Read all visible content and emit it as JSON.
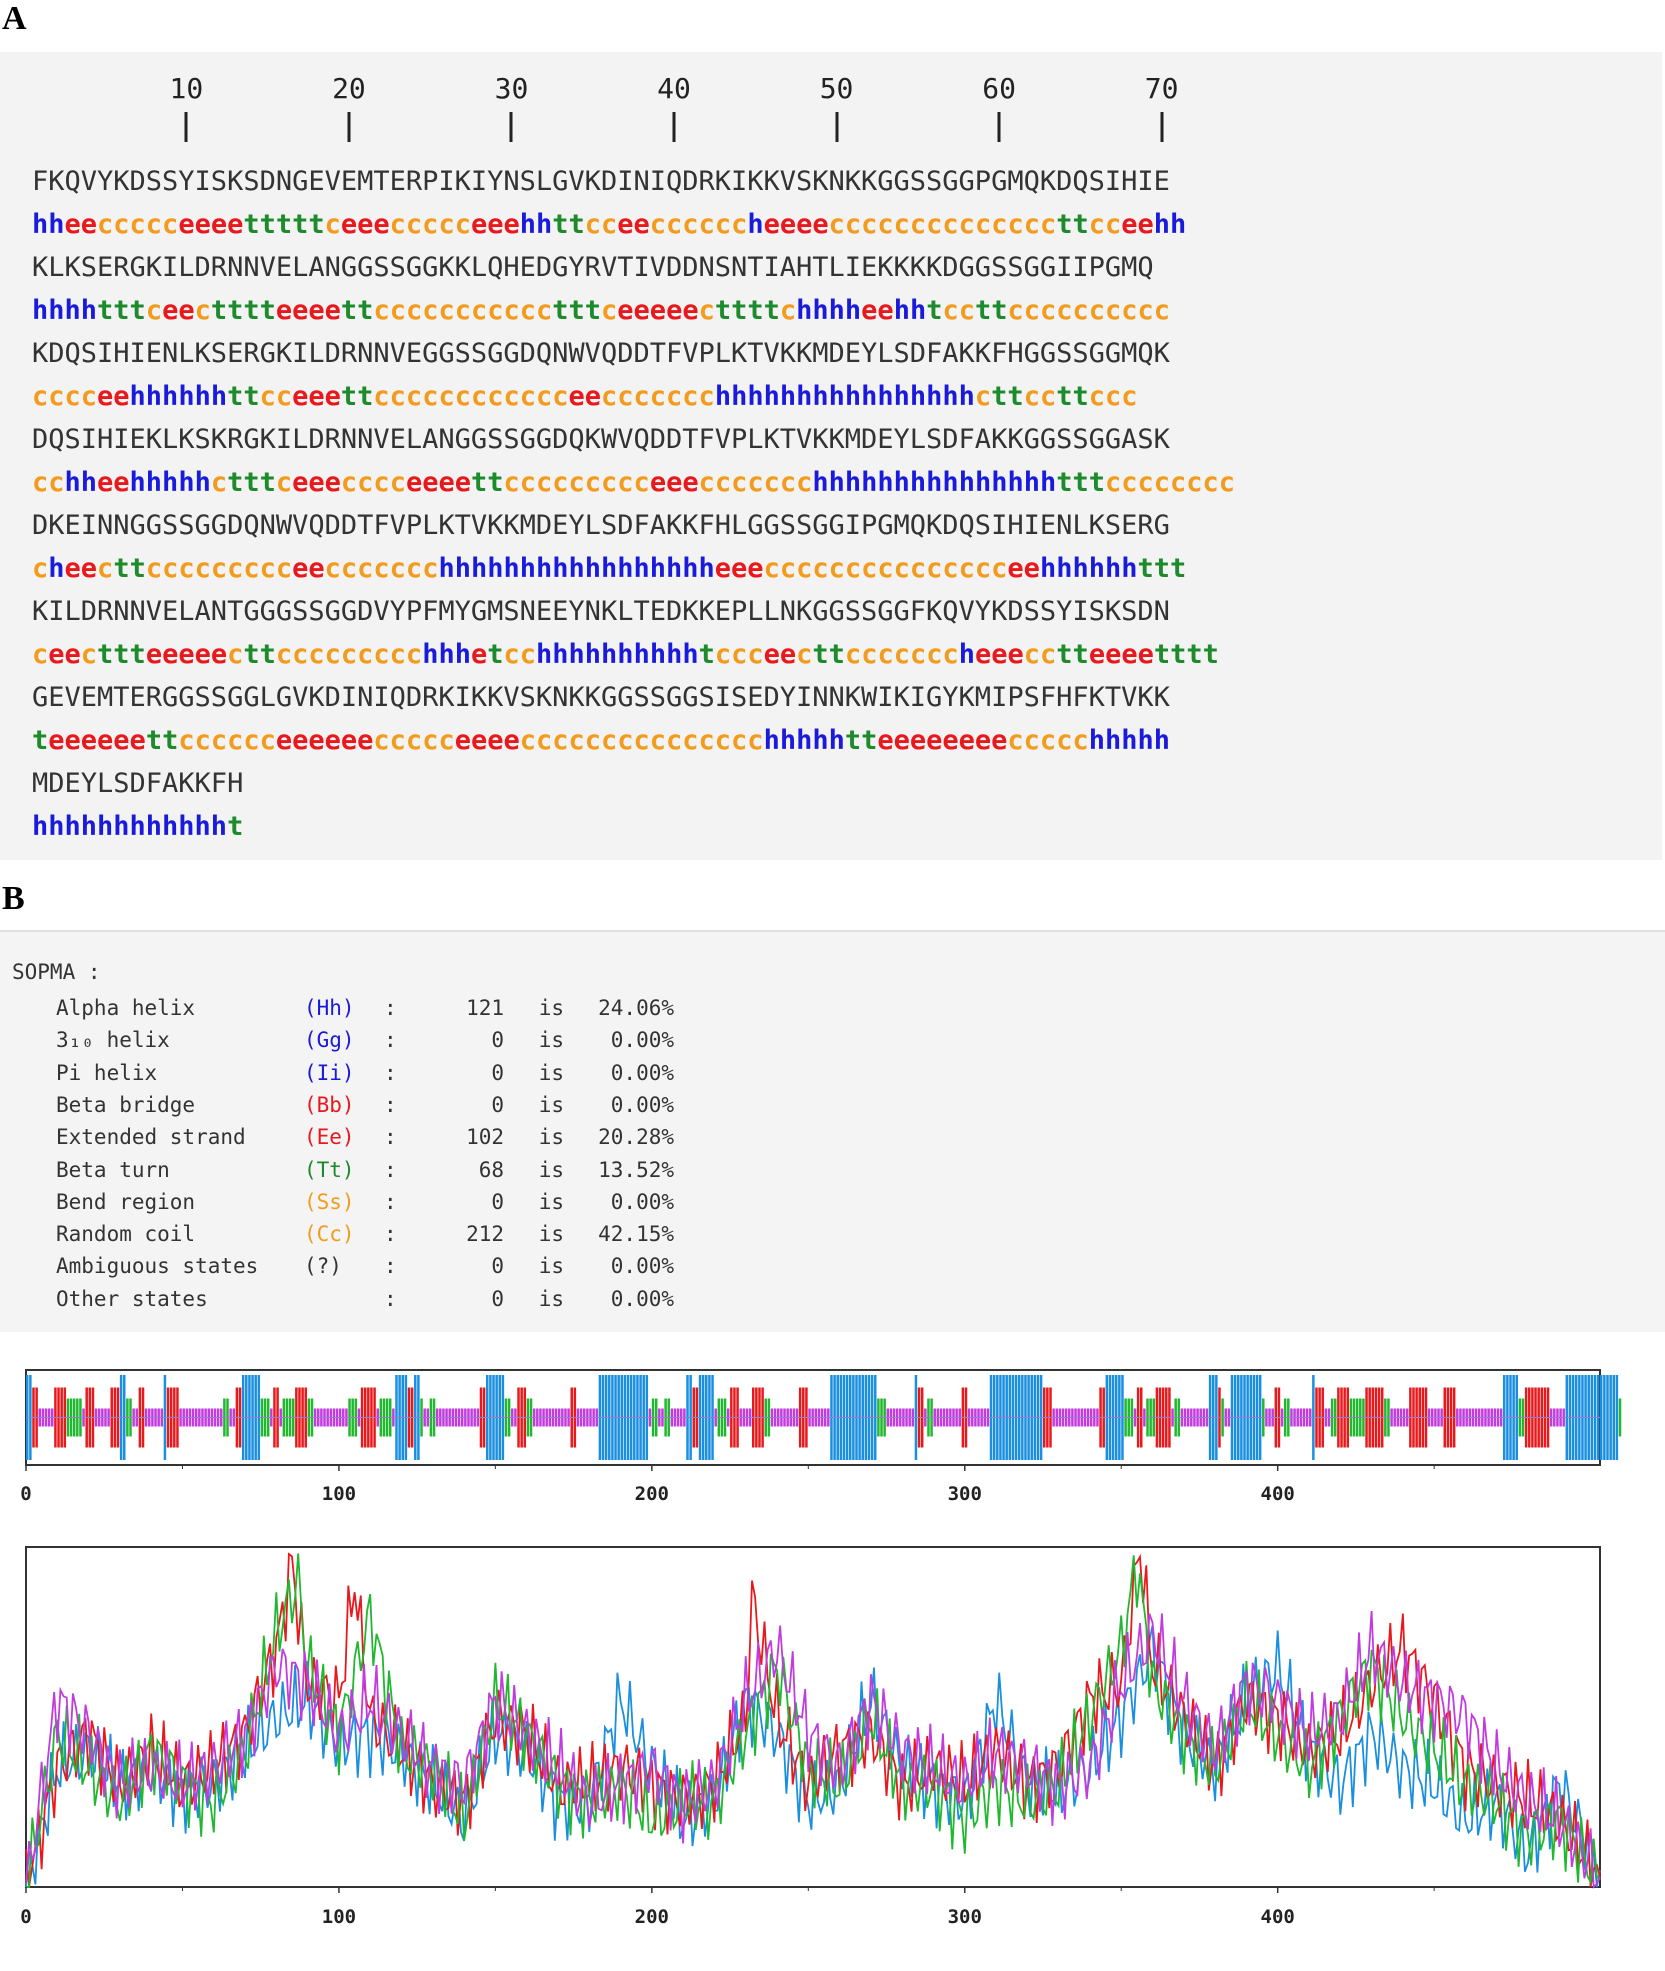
{
  "panel_a": {
    "label": "A",
    "ruler": [
      "10",
      "20",
      "30",
      "40",
      "50",
      "60",
      "70"
    ],
    "rows": [
      {
        "seq": "FKQVYKDSSYISKSDNGEVEMTERPIKIYNSLGVKDINIQDRKIKKVSKNKKGGSSGGPGMQKDQSIHIE",
        "ss": "hheeccccceeeetttttceeeccccceeehhttcceeccccccheeeeccccccccccccccttcceehh"
      },
      {
        "seq": "KLKSERGKILDRNNVELANGGSSGGKKLQHEDGYRVTIVDDNSNTIAHTLIEKKKKDGGSSGGIIPGMQ",
        "ss": "hhhhtttceectttteeeettccccccccccctttceeeeecttttchhhheehhtccttcccccccccc"
      },
      {
        "seq": "KDQSIHIENLKSERGKILDRNNVEGGSSGGDQNWVQDDTFVPLKTVKKMDEYLSDFAKKFHGGSSGGMQK",
        "ss": "cccceehhhhhhttcceeettcccccccccccceeccccccchhhhhhhhhhhhhhhhcttccttccc"
      },
      {
        "seq": "DQSIHIEKLKSKRGKILDRNNVELANGGSSGGDQKWVQDDTFVPLKTVKKMDEYLSDFAKKGGSSGGASK",
        "ss": "cchheehhhhhctttceeecccceeeettccccccccceeeccccccchhhhhhhhhhhhhhhtttcccccccc"
      },
      {
        "seq": "DKEINNGGSSGGDQNWVQDDTFVPLKTVKKMDEYLSDFAKKFHLGGSSGGIPGMQKDQSIHIENLKSERG",
        "ss": "cheecttccccccccceeccccccchhhhhhhhhhhhhhhhheeeccccccccccccccceehhhhhhttt"
      },
      {
        "seq": "KILDRNNVELANTGGGSSGGDVYPFMYGMSNEEYNKLTEDKKEPLLNKGGSSGGFKQVYKDSSYISKSDN",
        "ss": "ceecttteeeeecttccccccccchhhetcchhhhhhhhhhtccceecttcccccccheeecctteeeetttt"
      },
      {
        "seq": "GEVEMTERGGSSGGLGVKDINIQDRKIKKVSKNKKGGSSGGSISEDYINNKWIKIGYKMIPSFHFKTVKK",
        "ss": "teeeeeettcccccceeeeeeccccceeeeccccccccccccccchhhhhtteeeeeeeeccccchhhhh"
      },
      {
        "seq": "MDEYLSDFAKKFH",
        "ss": "hhhhhhhhhhhht"
      }
    ]
  },
  "panel_b": {
    "label": "B",
    "title": "SOPMA :",
    "stats": [
      {
        "name": "Alpha helix",
        "code": "(Hh)",
        "count": "121",
        "is": "is",
        "pct": "24.06%"
      },
      {
        "name": "3₁₀ helix",
        "code": "(Gg)",
        "count": "0",
        "is": "is",
        "pct": "0.00%"
      },
      {
        "name": "Pi helix",
        "code": "(Ii)",
        "count": "0",
        "is": "is",
        "pct": "0.00%"
      },
      {
        "name": "Beta bridge",
        "code": "(Bb)",
        "count": "0",
        "is": "is",
        "pct": "0.00%"
      },
      {
        "name": "Extended strand",
        "code": "(Ee)",
        "count": "102",
        "is": "is",
        "pct": "20.28%"
      },
      {
        "name": "Beta turn",
        "code": "(Tt)",
        "count": "68",
        "is": "is",
        "pct": "13.52%"
      },
      {
        "name": "Bend region",
        "code": "(Ss)",
        "count": "0",
        "is": "is",
        "pct": "0.00%"
      },
      {
        "name": "Random coil",
        "code": "(Cc)",
        "count": "212",
        "is": "is",
        "pct": "42.15%"
      },
      {
        "name": "Ambiguous states",
        "code": "(?)",
        "count": "0",
        "is": "is",
        "pct": "0.00%"
      },
      {
        "name": "Other states",
        "code": "",
        "count": "0",
        "is": "is",
        "pct": "0.00%"
      }
    ],
    "code_colors": {
      "(Hh)": "#1a1adb",
      "(Gg)": "#1a1adb",
      "(Ii)": "#1a1adb",
      "(Bb)": "#e8191c",
      "(Ee)": "#e8191c",
      "(Tt)": "#1d8a2b",
      "(Ss)": "#f29b1d",
      "(Cc)": "#f29b1d",
      "(?)": "#333333",
      "": "#333333"
    }
  },
  "colors": {
    "helix": "#1a8fe0",
    "extended": "#e8191c",
    "turn": "#1fb82e",
    "coil": "#c23bdf"
  },
  "chart_data": [
    {
      "type": "bar",
      "xlim": [
        0,
        503
      ],
      "xticks": [
        0,
        100,
        200,
        300,
        400
      ],
      "xtick_labels": [
        "0",
        "100",
        "200",
        "300",
        "400"
      ]
    },
    {
      "type": "line",
      "xlim": [
        0,
        503
      ],
      "xticks": [
        0,
        100,
        200,
        300,
        400
      ],
      "xtick_labels": [
        "0",
        "100",
        "200",
        "300",
        "400"
      ],
      "series": [
        {
          "color": "#1a8fe0",
          "x": [
            0,
            10,
            20,
            30,
            40,
            50,
            60,
            70,
            80,
            90,
            100,
            110,
            120,
            130,
            140,
            150,
            160,
            170,
            180,
            190,
            200,
            210,
            220,
            230,
            240,
            250,
            260,
            270,
            280,
            290,
            300,
            310,
            320,
            330,
            340,
            350,
            360,
            370,
            380,
            390,
            400,
            410,
            420,
            430,
            440,
            450,
            460,
            470,
            480,
            490,
            503
          ],
          "y": [
            0.0,
            0.35,
            0.4,
            0.3,
            0.35,
            0.28,
            0.3,
            0.4,
            0.5,
            0.55,
            0.42,
            0.45,
            0.4,
            0.3,
            0.2,
            0.45,
            0.4,
            0.25,
            0.25,
            0.55,
            0.35,
            0.2,
            0.25,
            0.55,
            0.45,
            0.25,
            0.3,
            0.55,
            0.35,
            0.3,
            0.25,
            0.55,
            0.3,
            0.28,
            0.35,
            0.5,
            0.7,
            0.45,
            0.35,
            0.55,
            0.65,
            0.4,
            0.3,
            0.45,
            0.35,
            0.3,
            0.2,
            0.25,
            0.1,
            0.3,
            0.05
          ]
        },
        {
          "color": "#e8191c",
          "x": [
            0,
            10,
            20,
            30,
            40,
            50,
            60,
            70,
            80,
            85,
            90,
            100,
            105,
            110,
            120,
            130,
            140,
            150,
            160,
            170,
            180,
            190,
            200,
            210,
            220,
            230,
            232,
            240,
            250,
            260,
            270,
            280,
            290,
            300,
            310,
            320,
            330,
            340,
            350,
            356,
            360,
            370,
            380,
            390,
            400,
            410,
            420,
            430,
            440,
            450,
            460,
            470,
            480,
            490,
            503
          ],
          "y": [
            0.0,
            0.35,
            0.45,
            0.3,
            0.4,
            0.3,
            0.35,
            0.45,
            0.7,
            0.95,
            0.6,
            0.55,
            0.9,
            0.5,
            0.4,
            0.3,
            0.25,
            0.5,
            0.45,
            0.3,
            0.3,
            0.35,
            0.3,
            0.25,
            0.3,
            0.5,
            0.85,
            0.5,
            0.3,
            0.4,
            0.45,
            0.3,
            0.35,
            0.3,
            0.4,
            0.3,
            0.35,
            0.55,
            0.6,
            1.0,
            0.65,
            0.5,
            0.35,
            0.55,
            0.5,
            0.4,
            0.45,
            0.6,
            0.7,
            0.55,
            0.35,
            0.3,
            0.25,
            0.2,
            0.03
          ]
        },
        {
          "color": "#1fb82e",
          "x": [
            0,
            10,
            20,
            30,
            40,
            50,
            60,
            70,
            80,
            87,
            90,
            100,
            110,
            120,
            130,
            140,
            150,
            160,
            170,
            180,
            190,
            200,
            210,
            220,
            230,
            240,
            250,
            260,
            270,
            280,
            290,
            300,
            310,
            320,
            330,
            340,
            350,
            355,
            360,
            370,
            380,
            390,
            400,
            410,
            420,
            430,
            440,
            450,
            460,
            470,
            480,
            490,
            503
          ],
          "y": [
            0.0,
            0.45,
            0.35,
            0.25,
            0.4,
            0.3,
            0.25,
            0.4,
            0.75,
            0.9,
            0.65,
            0.45,
            0.8,
            0.4,
            0.35,
            0.2,
            0.55,
            0.45,
            0.3,
            0.25,
            0.3,
            0.2,
            0.25,
            0.25,
            0.45,
            0.65,
            0.35,
            0.3,
            0.5,
            0.3,
            0.3,
            0.2,
            0.3,
            0.25,
            0.3,
            0.5,
            0.7,
            0.95,
            0.6,
            0.45,
            0.35,
            0.55,
            0.45,
            0.35,
            0.5,
            0.65,
            0.5,
            0.4,
            0.3,
            0.25,
            0.15,
            0.2,
            0.02
          ]
        },
        {
          "color": "#c23bdf",
          "x": [
            0,
            10,
            20,
            30,
            40,
            50,
            60,
            70,
            80,
            90,
            100,
            110,
            120,
            130,
            140,
            150,
            160,
            170,
            180,
            190,
            200,
            210,
            220,
            230,
            240,
            250,
            260,
            270,
            280,
            290,
            300,
            310,
            320,
            330,
            340,
            350,
            360,
            370,
            380,
            390,
            400,
            410,
            420,
            430,
            440,
            450,
            460,
            470,
            480,
            490,
            503
          ],
          "y": [
            0.0,
            0.55,
            0.45,
            0.3,
            0.35,
            0.3,
            0.35,
            0.45,
            0.65,
            0.6,
            0.45,
            0.55,
            0.45,
            0.35,
            0.3,
            0.55,
            0.45,
            0.35,
            0.25,
            0.3,
            0.35,
            0.25,
            0.3,
            0.55,
            0.7,
            0.45,
            0.35,
            0.55,
            0.4,
            0.35,
            0.3,
            0.4,
            0.35,
            0.3,
            0.35,
            0.6,
            0.75,
            0.55,
            0.4,
            0.6,
            0.55,
            0.45,
            0.5,
            0.7,
            0.6,
            0.55,
            0.5,
            0.35,
            0.25,
            0.2,
            0.03
          ]
        }
      ]
    }
  ]
}
